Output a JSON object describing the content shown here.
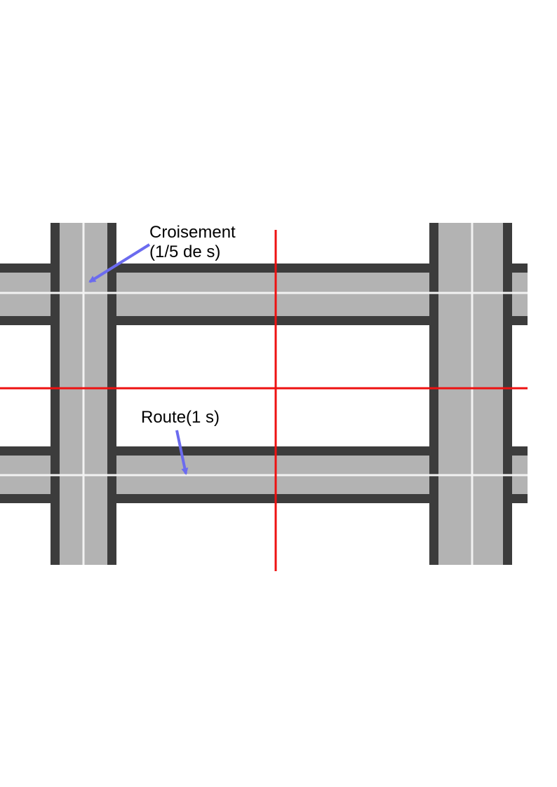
{
  "labels": {
    "crossing_line1": "Croisement",
    "crossing_line2": "(1/5 de s)",
    "road": "Route(1 s)"
  },
  "colors": {
    "background": "#ffffff",
    "road_fill": "#b3b3b3",
    "road_border": "#3c3c3c",
    "center_line": "#f2f2f2",
    "section_line": "#ee1111",
    "arrow": "#6b6bef",
    "text": "#000000"
  }
}
